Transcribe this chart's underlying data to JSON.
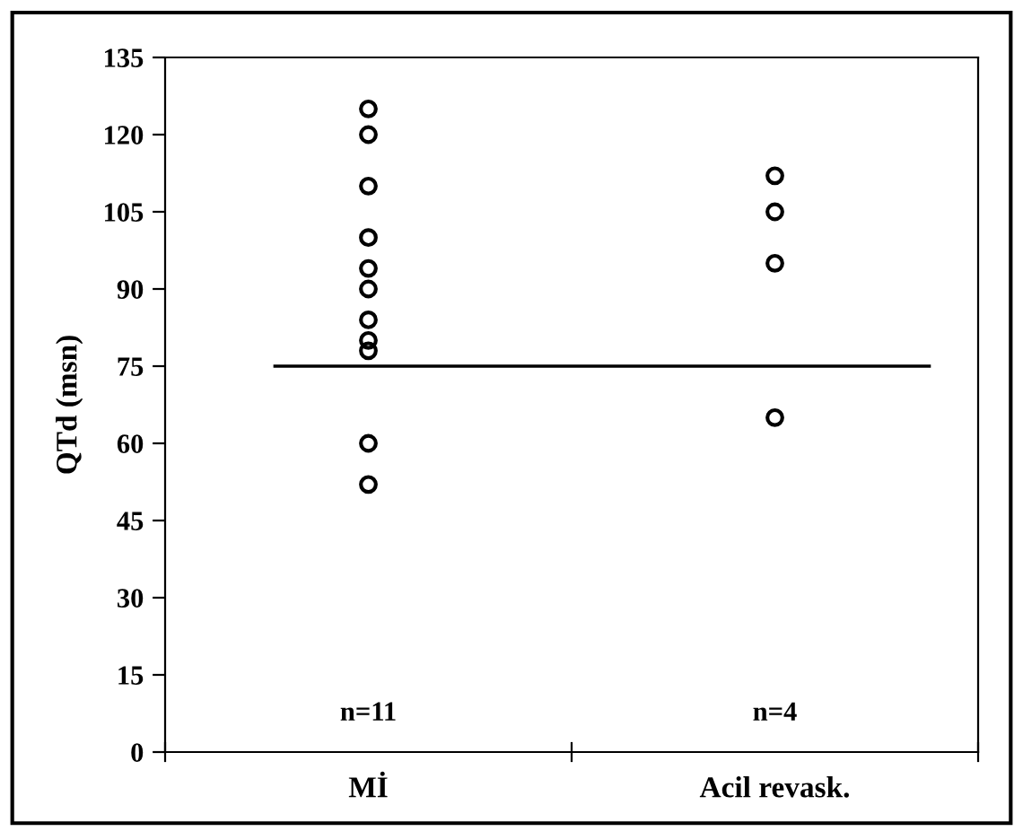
{
  "chart_data": {
    "type": "scatter",
    "ylabel": "QTd (msn)",
    "categories": [
      "Mİ",
      "Acil revask."
    ],
    "series": [
      {
        "color": "#000000",
        "x": [
          "Mİ",
          "Mİ",
          "Mİ",
          "Mİ",
          "Mİ",
          "Mİ",
          "Mİ",
          "Mİ",
          "Mİ",
          "Mİ",
          "Mİ",
          "Acil revask.",
          "Acil revask.",
          "Acil revask.",
          "Acil revask."
        ],
        "values": [
          125,
          120,
          110,
          100,
          94,
          90,
          84,
          80,
          78,
          60,
          52,
          112,
          105,
          95,
          65
        ]
      }
    ],
    "ylim": [
      0,
      135
    ],
    "yticks": [
      0,
      15,
      30,
      45,
      60,
      75,
      90,
      105,
      120,
      135
    ],
    "ref_lines": [
      {
        "axis": "y",
        "value": 75,
        "color": "#000000",
        "line_style": "solid"
      }
    ],
    "annotations": [
      "n=11",
      "n=4"
    ],
    "marker": "circle",
    "grid": false,
    "legend": false
  }
}
